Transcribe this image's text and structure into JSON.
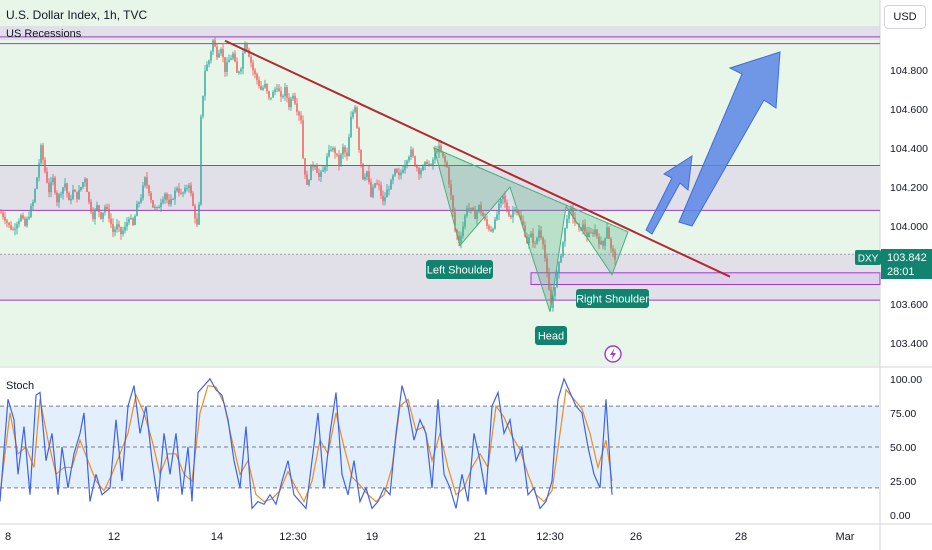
{
  "header": {
    "title": "U.S. Dollar Index, 1h, TVC",
    "currency_button": "USD"
  },
  "indicators": {
    "recession_label": "US Recessions",
    "stoch_label": "Stoch"
  },
  "price_tag": {
    "symbol": "DXY",
    "price": "103.842",
    "countdown": "28:01"
  },
  "annotations": {
    "left_shoulder": "Left Shoulder",
    "head": "Head",
    "right_shoulder": "Right Shoulder"
  },
  "colors": {
    "bull": "#26a69a",
    "bear": "#ef5350",
    "trendline": "#b22833",
    "zone_line": "#a03cc8",
    "arrow": "#5b86e5",
    "pattern": "#4caf7f",
    "label_bg": "#12836f",
    "stoch_k": "#3f63e8",
    "stoch_d": "#f08a24"
  },
  "chart_data": [
    {
      "type": "candlestick",
      "title": "U.S. Dollar Index, 1h, TVC",
      "x_tick_labels": [
        "8",
        "12",
        "14",
        "12:30",
        "19",
        "21",
        "12:30",
        "26",
        "28",
        "Mar"
      ],
      "y_tick_labels": [
        "104.800",
        "104.600",
        "104.400",
        "104.200",
        "104.000",
        "103.600",
        "103.400"
      ],
      "ylim": [
        103.32,
        105.02
      ],
      "last_price": 103.842,
      "trendline": {
        "start": 104.95,
        "end": 103.74
      },
      "horizontal_levels": [
        104.97,
        104.935,
        104.31,
        104.08,
        103.855,
        103.76,
        103.7,
        103.62
      ],
      "price_path": [
        [
          0,
          104.07
        ],
        [
          4,
          104.04
        ],
        [
          8,
          104.0
        ],
        [
          12,
          103.98
        ],
        [
          16,
          104.02
        ],
        [
          20,
          104.05
        ],
        [
          24,
          104.0
        ],
        [
          28,
          104.06
        ],
        [
          32,
          104.12
        ],
        [
          36,
          104.25
        ],
        [
          40,
          104.4
        ],
        [
          44,
          104.28
        ],
        [
          48,
          104.18
        ],
        [
          52,
          104.24
        ],
        [
          56,
          104.13
        ],
        [
          60,
          104.18
        ],
        [
          64,
          104.22
        ],
        [
          68,
          104.12
        ],
        [
          72,
          104.18
        ],
        [
          76,
          104.15
        ],
        [
          80,
          104.2
        ],
        [
          84,
          104.25
        ],
        [
          88,
          104.12
        ],
        [
          92,
          104.05
        ],
        [
          96,
          104.1
        ],
        [
          100,
          104.05
        ],
        [
          104,
          104.1
        ],
        [
          108,
          104.05
        ],
        [
          112,
          103.97
        ],
        [
          116,
          104.0
        ],
        [
          120,
          103.96
        ],
        [
          124,
          103.99
        ],
        [
          128,
          104.05
        ],
        [
          132,
          104.0
        ],
        [
          136,
          104.1
        ],
        [
          140,
          104.15
        ],
        [
          144,
          104.24
        ],
        [
          148,
          104.18
        ],
        [
          152,
          104.1
        ],
        [
          156,
          104.08
        ],
        [
          160,
          104.13
        ],
        [
          164,
          104.17
        ],
        [
          168,
          104.1
        ],
        [
          172,
          104.15
        ],
        [
          176,
          104.2
        ],
        [
          180,
          104.16
        ],
        [
          184,
          104.18
        ],
        [
          188,
          104.22
        ],
        [
          192,
          104.1
        ],
        [
          196,
          104.0
        ],
        [
          198,
          104.1
        ],
        [
          200,
          104.55
        ],
        [
          204,
          104.8
        ],
        [
          208,
          104.85
        ],
        [
          212,
          104.95
        ],
        [
          216,
          104.88
        ],
        [
          220,
          104.92
        ],
        [
          224,
          104.8
        ],
        [
          228,
          104.85
        ],
        [
          232,
          104.88
        ],
        [
          236,
          104.78
        ],
        [
          240,
          104.82
        ],
        [
          244,
          104.95
        ],
        [
          248,
          104.88
        ],
        [
          252,
          104.8
        ],
        [
          256,
          104.75
        ],
        [
          260,
          104.7
        ],
        [
          264,
          104.72
        ],
        [
          268,
          104.65
        ],
        [
          272,
          104.68
        ],
        [
          276,
          104.72
        ],
        [
          280,
          104.65
        ],
        [
          284,
          104.7
        ],
        [
          288,
          104.62
        ],
        [
          292,
          104.68
        ],
        [
          296,
          104.6
        ],
        [
          300,
          104.55
        ],
        [
          302,
          104.35
        ],
        [
          306,
          104.2
        ],
        [
          310,
          104.3
        ],
        [
          314,
          104.32
        ],
        [
          318,
          104.25
        ],
        [
          322,
          104.28
        ],
        [
          326,
          104.35
        ],
        [
          330,
          104.4
        ],
        [
          334,
          104.38
        ],
        [
          338,
          104.32
        ],
        [
          342,
          104.4
        ],
        [
          346,
          104.35
        ],
        [
          350,
          104.55
        ],
        [
          354,
          104.62
        ],
        [
          358,
          104.4
        ],
        [
          362,
          104.25
        ],
        [
          366,
          104.28
        ],
        [
          370,
          104.15
        ],
        [
          374,
          104.22
        ],
        [
          378,
          104.2
        ],
        [
          382,
          104.12
        ],
        [
          386,
          104.18
        ],
        [
          390,
          104.22
        ],
        [
          394,
          104.28
        ],
        [
          398,
          104.25
        ],
        [
          402,
          104.3
        ],
        [
          406,
          104.35
        ],
        [
          410,
          104.38
        ],
        [
          414,
          104.32
        ],
        [
          418,
          104.28
        ],
        [
          422,
          104.3
        ],
        [
          426,
          104.33
        ],
        [
          430,
          104.3
        ],
        [
          434,
          104.38
        ],
        [
          438,
          104.4
        ],
        [
          442,
          104.35
        ],
        [
          446,
          104.3
        ],
        [
          450,
          104.15
        ],
        [
          454,
          103.98
        ],
        [
          458,
          103.92
        ],
        [
          462,
          104.0
        ],
        [
          466,
          104.1
        ],
        [
          470,
          104.08
        ],
        [
          474,
          104.05
        ],
        [
          478,
          104.1
        ],
        [
          482,
          104.05
        ],
        [
          486,
          104.0
        ],
        [
          490,
          103.98
        ],
        [
          494,
          104.02
        ],
        [
          498,
          104.1
        ],
        [
          502,
          104.15
        ],
        [
          506,
          104.08
        ],
        [
          510,
          104.05
        ],
        [
          514,
          104.1
        ],
        [
          518,
          104.05
        ],
        [
          522,
          104.0
        ],
        [
          526,
          103.92
        ],
        [
          530,
          103.95
        ],
        [
          534,
          103.9
        ],
        [
          538,
          103.98
        ],
        [
          542,
          103.92
        ],
        [
          546,
          103.75
        ],
        [
          550,
          103.58
        ],
        [
          554,
          103.7
        ],
        [
          558,
          103.8
        ],
        [
          562,
          103.92
        ],
        [
          566,
          104.05
        ],
        [
          570,
          104.08
        ],
        [
          574,
          104.02
        ],
        [
          578,
          103.98
        ],
        [
          582,
          104.0
        ],
        [
          586,
          103.95
        ],
        [
          590,
          103.96
        ],
        [
          594,
          103.98
        ],
        [
          598,
          103.92
        ],
        [
          602,
          103.9
        ],
        [
          606,
          104.0
        ],
        [
          610,
          103.88
        ],
        [
          614,
          103.84
        ]
      ]
    },
    {
      "type": "line",
      "title": "Stoch",
      "y_tick_labels": [
        "100.00",
        "75.00",
        "50.00",
        "25.00",
        "0.00"
      ],
      "ylim": [
        -5,
        105
      ],
      "bands": [
        80,
        50,
        20
      ],
      "k_path": [
        [
          0,
          10
        ],
        [
          8,
          85
        ],
        [
          14,
          70
        ],
        [
          18,
          30
        ],
        [
          24,
          65
        ],
        [
          30,
          15
        ],
        [
          36,
          88
        ],
        [
          40,
          90
        ],
        [
          46,
          40
        ],
        [
          52,
          60
        ],
        [
          58,
          15
        ],
        [
          62,
          50
        ],
        [
          68,
          20
        ],
        [
          74,
          45
        ],
        [
          80,
          60
        ],
        [
          84,
          75
        ],
        [
          90,
          10
        ],
        [
          96,
          30
        ],
        [
          102,
          15
        ],
        [
          110,
          20
        ],
        [
          116,
          70
        ],
        [
          122,
          25
        ],
        [
          128,
          80
        ],
        [
          134,
          95
        ],
        [
          140,
          60
        ],
        [
          146,
          80
        ],
        [
          152,
          40
        ],
        [
          158,
          10
        ],
        [
          164,
          60
        ],
        [
          170,
          30
        ],
        [
          176,
          60
        ],
        [
          182,
          15
        ],
        [
          188,
          50
        ],
        [
          192,
          10
        ],
        [
          198,
          90
        ],
        [
          204,
          95
        ],
        [
          210,
          100
        ],
        [
          216,
          92
        ],
        [
          222,
          88
        ],
        [
          228,
          70
        ],
        [
          234,
          40
        ],
        [
          240,
          20
        ],
        [
          246,
          65
        ],
        [
          252,
          5
        ],
        [
          258,
          10
        ],
        [
          264,
          8
        ],
        [
          270,
          15
        ],
        [
          276,
          8
        ],
        [
          282,
          25
        ],
        [
          288,
          40
        ],
        [
          294,
          15
        ],
        [
          300,
          10
        ],
        [
          306,
          5
        ],
        [
          312,
          40
        ],
        [
          318,
          75
        ],
        [
          324,
          20
        ],
        [
          330,
          60
        ],
        [
          336,
          90
        ],
        [
          342,
          30
        ],
        [
          348,
          15
        ],
        [
          354,
          40
        ],
        [
          360,
          10
        ],
        [
          366,
          20
        ],
        [
          372,
          5
        ],
        [
          378,
          10
        ],
        [
          384,
          20
        ],
        [
          390,
          15
        ],
        [
          396,
          60
        ],
        [
          402,
          95
        ],
        [
          408,
          80
        ],
        [
          414,
          55
        ],
        [
          420,
          70
        ],
        [
          426,
          60
        ],
        [
          432,
          20
        ],
        [
          438,
          85
        ],
        [
          444,
          30
        ],
        [
          450,
          20
        ],
        [
          456,
          5
        ],
        [
          462,
          30
        ],
        [
          468,
          10
        ],
        [
          474,
          60
        ],
        [
          480,
          40
        ],
        [
          486,
          15
        ],
        [
          492,
          80
        ],
        [
          498,
          90
        ],
        [
          504,
          60
        ],
        [
          510,
          70
        ],
        [
          516,
          40
        ],
        [
          522,
          50
        ],
        [
          528,
          15
        ],
        [
          534,
          20
        ],
        [
          540,
          5
        ],
        [
          546,
          10
        ],
        [
          552,
          25
        ],
        [
          558,
          85
        ],
        [
          564,
          100
        ],
        [
          570,
          90
        ],
        [
          576,
          80
        ],
        [
          582,
          75
        ],
        [
          588,
          50
        ],
        [
          594,
          30
        ],
        [
          600,
          20
        ],
        [
          606,
          85
        ],
        [
          612,
          15
        ]
      ],
      "d_path": [
        [
          0,
          15
        ],
        [
          10,
          75
        ],
        [
          18,
          45
        ],
        [
          26,
          50
        ],
        [
          34,
          35
        ],
        [
          40,
          85
        ],
        [
          48,
          55
        ],
        [
          56,
          30
        ],
        [
          64,
          35
        ],
        [
          72,
          35
        ],
        [
          80,
          55
        ],
        [
          88,
          40
        ],
        [
          96,
          25
        ],
        [
          104,
          18
        ],
        [
          112,
          30
        ],
        [
          120,
          45
        ],
        [
          128,
          60
        ],
        [
          136,
          88
        ],
        [
          144,
          75
        ],
        [
          152,
          55
        ],
        [
          160,
          30
        ],
        [
          168,
          45
        ],
        [
          176,
          45
        ],
        [
          184,
          30
        ],
        [
          192,
          25
        ],
        [
          200,
          75
        ],
        [
          208,
          95
        ],
        [
          216,
          94
        ],
        [
          224,
          82
        ],
        [
          232,
          55
        ],
        [
          240,
          30
        ],
        [
          248,
          40
        ],
        [
          256,
          15
        ],
        [
          264,
          10
        ],
        [
          272,
          12
        ],
        [
          280,
          18
        ],
        [
          288,
          32
        ],
        [
          296,
          20
        ],
        [
          304,
          10
        ],
        [
          312,
          25
        ],
        [
          320,
          55
        ],
        [
          328,
          45
        ],
        [
          336,
          75
        ],
        [
          344,
          50
        ],
        [
          352,
          28
        ],
        [
          360,
          22
        ],
        [
          368,
          15
        ],
        [
          376,
          10
        ],
        [
          384,
          15
        ],
        [
          392,
          35
        ],
        [
          400,
          80
        ],
        [
          408,
          85
        ],
        [
          416,
          62
        ],
        [
          424,
          65
        ],
        [
          432,
          40
        ],
        [
          440,
          60
        ],
        [
          448,
          35
        ],
        [
          456,
          15
        ],
        [
          464,
          20
        ],
        [
          472,
          35
        ],
        [
          480,
          45
        ],
        [
          488,
          35
        ],
        [
          496,
          80
        ],
        [
          504,
          72
        ],
        [
          512,
          58
        ],
        [
          520,
          48
        ],
        [
          528,
          30
        ],
        [
          536,
          15
        ],
        [
          544,
          10
        ],
        [
          552,
          18
        ],
        [
          560,
          60
        ],
        [
          566,
          92
        ],
        [
          574,
          85
        ],
        [
          582,
          78
        ],
        [
          590,
          60
        ],
        [
          598,
          35
        ],
        [
          606,
          55
        ],
        [
          612,
          25
        ]
      ]
    }
  ]
}
